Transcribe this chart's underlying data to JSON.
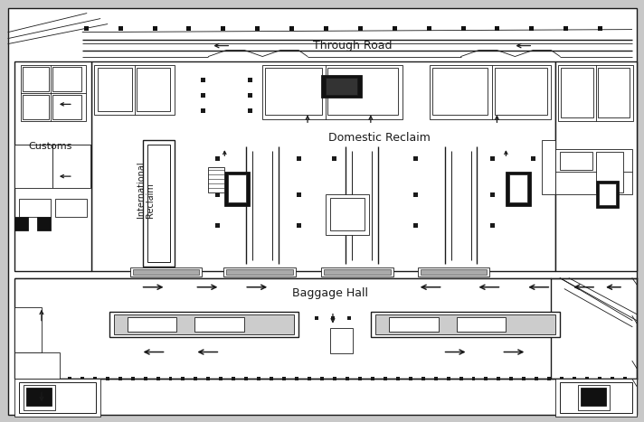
{
  "bg_color": "#c8c8c8",
  "line_color": "#1a1a1a",
  "fill_dark": "#111111",
  "through_road_label": "Through Road",
  "customs_label": "Customs",
  "international_label": "International",
  "reclaim_label": "Reclaim",
  "domestic_reclaim_label": "Domestic Reclaim",
  "baggage_hall_label": "Baggage Hall"
}
